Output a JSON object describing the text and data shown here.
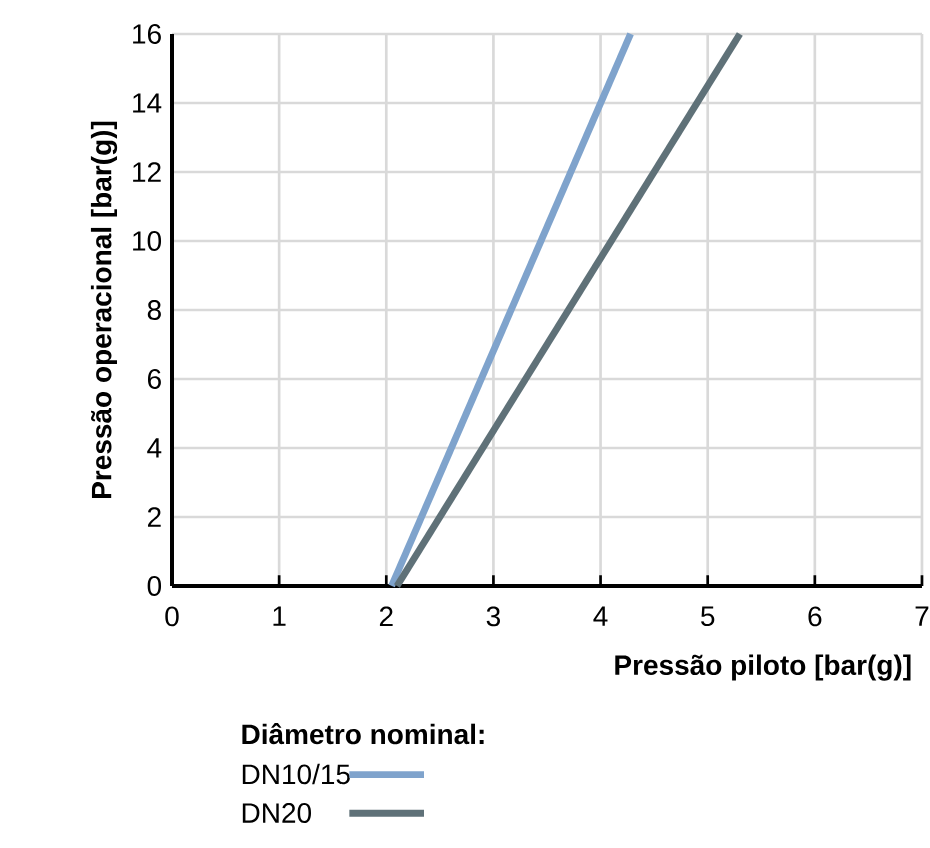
{
  "chart_data": {
    "type": "line",
    "xlabel": "Pressão piloto [bar(g)]",
    "ylabel": "Pressão operacional [bar(g)]",
    "legend_title": "Diâmetro nominal:",
    "series": [
      {
        "name": "DN10/15",
        "color": "#7fa3cc",
        "x": [
          2.05,
          4.28
        ],
        "values": [
          0,
          16
        ]
      },
      {
        "name": "DN20",
        "color": "#5f7178",
        "x": [
          2.1,
          5.3
        ],
        "values": [
          0,
          16
        ]
      }
    ],
    "xlim": [
      0,
      7
    ],
    "ylim": [
      0,
      16
    ],
    "xticks": [
      0,
      1,
      2,
      3,
      4,
      5,
      6,
      7
    ],
    "yticks": [
      0,
      2,
      4,
      6,
      8,
      10,
      12,
      14,
      16
    ],
    "grid": true,
    "legend": "bottom left",
    "marker": "none",
    "line_style": "solid"
  }
}
